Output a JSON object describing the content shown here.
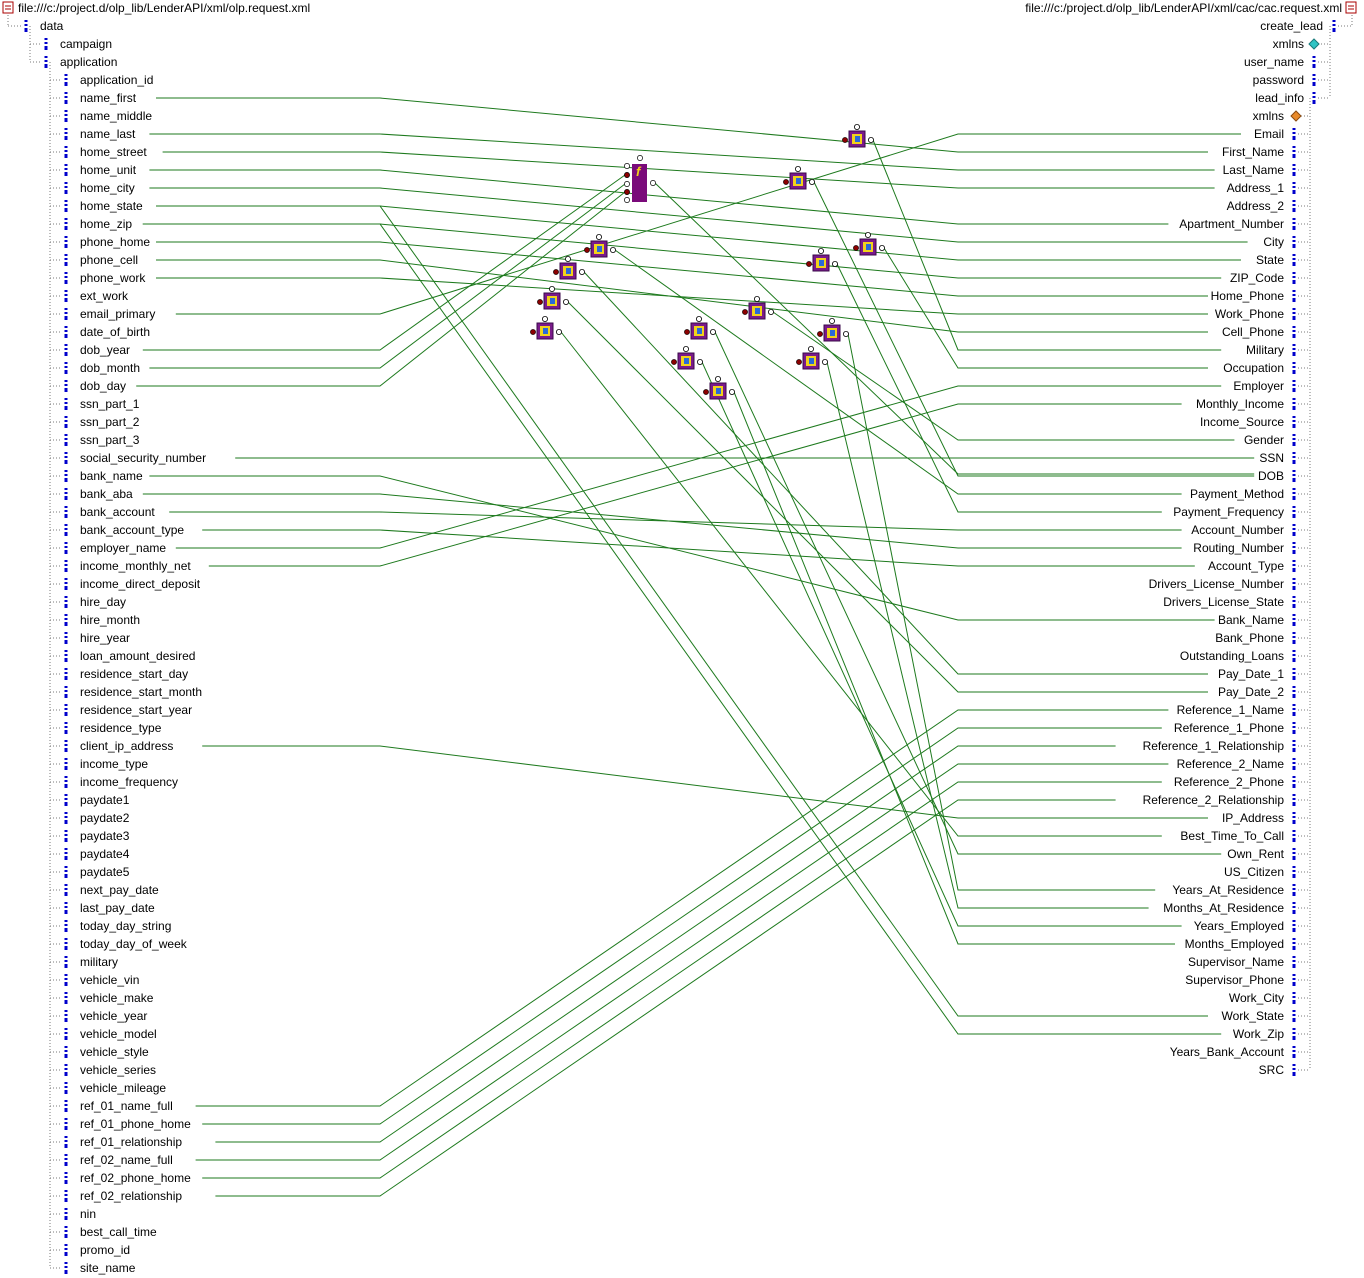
{
  "source": {
    "path": "file:///c:/project.d/olp_lib/LenderAPI/xml/olp.request.xml",
    "root": "data",
    "children": [
      "campaign",
      "application"
    ],
    "fields": [
      "application_id",
      "name_first",
      "name_middle",
      "name_last",
      "home_street",
      "home_unit",
      "home_city",
      "home_state",
      "home_zip",
      "phone_home",
      "phone_cell",
      "phone_work",
      "ext_work",
      "email_primary",
      "date_of_birth",
      "dob_year",
      "dob_month",
      "dob_day",
      "ssn_part_1",
      "ssn_part_2",
      "ssn_part_3",
      "social_security_number",
      "bank_name",
      "bank_aba",
      "bank_account",
      "bank_account_type",
      "employer_name",
      "income_monthly_net",
      "income_direct_deposit",
      "hire_day",
      "hire_month",
      "hire_year",
      "loan_amount_desired",
      "residence_start_day",
      "residence_start_month",
      "residence_start_year",
      "residence_type",
      "client_ip_address",
      "income_type",
      "income_frequency",
      "paydate1",
      "paydate2",
      "paydate3",
      "paydate4",
      "paydate5",
      "next_pay_date",
      "last_pay_date",
      "today_day_string",
      "today_day_of_week",
      "military",
      "vehicle_vin",
      "vehicle_make",
      "vehicle_year",
      "vehicle_model",
      "vehicle_style",
      "vehicle_series",
      "vehicle_mileage",
      "ref_01_name_full",
      "ref_01_phone_home",
      "ref_01_relationship",
      "ref_02_name_full",
      "ref_02_phone_home",
      "ref_02_relationship",
      "nin",
      "best_call_time",
      "promo_id",
      "site_name"
    ]
  },
  "target": {
    "path": "file:///c:/project.d/olp_lib/LenderAPI/xml/cac/cac.request.xml",
    "root": "create_lead",
    "children": [
      "xmlns",
      "user_name",
      "password",
      "lead_info"
    ],
    "lead_info_xmlns": "xmlns",
    "fields": [
      "Email",
      "First_Name",
      "Last_Name",
      "Address_1",
      "Address_2",
      "Apartment_Number",
      "City",
      "State",
      "ZIP_Code",
      "Home_Phone",
      "Work_Phone",
      "Cell_Phone",
      "Military",
      "Occupation",
      "Employer",
      "Monthly_Income",
      "Income_Source",
      "Gender",
      "SSN",
      "DOB",
      "Payment_Method",
      "Payment_Frequency",
      "Account_Number",
      "Routing_Number",
      "Account_Type",
      "Drivers_License_Number",
      "Drivers_License_State",
      "Bank_Name",
      "Bank_Phone",
      "Outstanding_Loans",
      "Pay_Date_1",
      "Pay_Date_2",
      "Reference_1_Name",
      "Reference_1_Phone",
      "Reference_1_Relationship",
      "Reference_2_Name",
      "Reference_2_Phone",
      "Reference_2_Relationship",
      "IP_Address",
      "Best_Time_To_Call",
      "Own_Rent",
      "US_Citizen",
      "Years_At_Residence",
      "Months_At_Residence",
      "Years_Employed",
      "Months_Employed",
      "Supervisor_Name",
      "Supervisor_Phone",
      "Work_City",
      "Work_State",
      "Work_Zip",
      "Years_Bank_Account",
      "SRC"
    ]
  },
  "function_glyph": "f",
  "colors": {
    "line": "#1e7a1e",
    "node": "#0000cc",
    "tree": "#7a7a7a",
    "func": "#7a0a7a"
  },
  "icons": {
    "file": "xml-file-icon",
    "element": "element-node-icon",
    "attribute": "attribute-node-icon",
    "function": "function-block-icon",
    "transform": "transform-component-icon"
  }
}
